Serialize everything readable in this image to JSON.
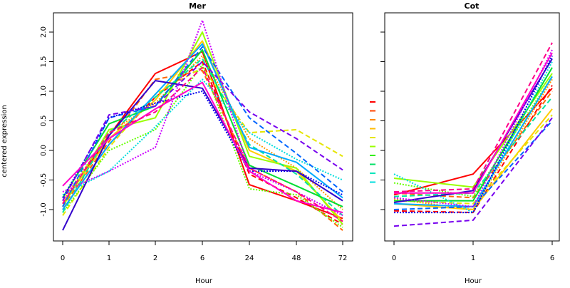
{
  "ylabel": "centered expression",
  "chart_data": [
    {
      "type": "line",
      "title": "Mer",
      "xlabel": "Hour",
      "categories": [
        "0",
        "1",
        "2",
        "6",
        "24",
        "48",
        "72"
      ],
      "ylim": [
        -1.5,
        2.25
      ],
      "yticks": [
        "-1.0",
        "-0.5",
        "0.0",
        "0.5",
        "1.0",
        "1.5",
        "2.0"
      ],
      "grid": false,
      "series": [
        {
          "color": "#ff0000",
          "dash": "solid",
          "values": [
            -0.9,
            0.25,
            1.3,
            1.67,
            -0.58,
            -0.85,
            -1.15
          ]
        },
        {
          "color": "#ff0000",
          "dash": "dashed",
          "values": [
            -1.0,
            0.1,
            0.9,
            1.5,
            -0.4,
            -0.8,
            -1.25
          ]
        },
        {
          "color": "#ff6600",
          "dash": "dashed",
          "values": [
            -0.95,
            0.15,
            1.2,
            1.35,
            -0.3,
            -0.7,
            -1.35
          ]
        },
        {
          "color": "#ff9900",
          "dash": "dotted",
          "values": [
            -0.85,
            0.3,
            0.8,
            1.6,
            0.2,
            -0.3,
            -1.0
          ]
        },
        {
          "color": "#ffcc00",
          "dash": "solid",
          "values": [
            -0.9,
            0.2,
            0.85,
            1.85,
            0.0,
            -0.35,
            -1.2
          ]
        },
        {
          "color": "#e5e500",
          "dash": "dashed",
          "values": [
            -1.1,
            0.05,
            0.95,
            1.4,
            0.3,
            0.35,
            -0.1
          ]
        },
        {
          "color": "#99ff00",
          "dash": "solid",
          "values": [
            -0.95,
            0.35,
            0.55,
            2.0,
            -0.1,
            -0.3,
            -1.25
          ]
        },
        {
          "color": "#66ff00",
          "dash": "dotted",
          "values": [
            -1.05,
            0.0,
            0.35,
            1.45,
            -0.65,
            -0.75,
            -1.3
          ]
        },
        {
          "color": "#00dd33",
          "dash": "solid",
          "values": [
            -0.8,
            0.45,
            0.75,
            1.7,
            -0.25,
            -0.6,
            -0.95
          ]
        },
        {
          "color": "#00e5a0",
          "dash": "dashed",
          "values": [
            -1.05,
            0.3,
            0.9,
            1.55,
            0.1,
            -0.4,
            -1.1
          ]
        },
        {
          "color": "#00dddd",
          "dash": "dotted",
          "values": [
            -0.75,
            -0.35,
            0.4,
            1.2,
            0.3,
            -0.15,
            -0.5
          ]
        },
        {
          "color": "#00aaff",
          "dash": "solid",
          "values": [
            -1.0,
            0.1,
            0.95,
            1.8,
            0.05,
            -0.2,
            -0.8
          ]
        },
        {
          "color": "#0066ff",
          "dash": "dashed",
          "values": [
            -0.95,
            0.55,
            0.75,
            1.75,
            0.55,
            -0.05,
            -0.7
          ]
        },
        {
          "color": "#0000ee",
          "dash": "dotted",
          "values": [
            -0.8,
            0.55,
            0.8,
            1.0,
            -0.35,
            -0.35,
            -0.75
          ]
        },
        {
          "color": "#3300cc",
          "dash": "solid",
          "values": [
            -1.35,
            0.25,
            1.18,
            1.05,
            -0.3,
            -0.35,
            -0.85
          ]
        },
        {
          "color": "#7700ee",
          "dash": "dashed",
          "values": [
            -0.85,
            0.6,
            0.75,
            1.5,
            0.65,
            0.2,
            -0.33
          ]
        },
        {
          "color": "#cc00ff",
          "dash": "dotted",
          "values": [
            -0.7,
            -0.35,
            0.05,
            2.2,
            -0.35,
            -0.7,
            -1.1
          ]
        },
        {
          "color": "#ff00cc",
          "dash": "solid",
          "values": [
            -0.6,
            0.2,
            0.7,
            1.15,
            -0.35,
            -0.85,
            -1.05
          ]
        },
        {
          "color": "#ff0088",
          "dash": "dashed",
          "values": [
            -0.9,
            0.3,
            0.65,
            1.4,
            -0.3,
            -0.7,
            -1.2
          ]
        }
      ]
    },
    {
      "type": "line",
      "title": "Cot",
      "xlabel": "Hour",
      "categories": [
        "0",
        "1",
        "6"
      ],
      "ylim": [
        -1.5,
        2.25
      ],
      "grid": false,
      "series": [
        {
          "color": "#ff0000",
          "dash": "solid",
          "values": [
            -0.75,
            -0.4,
            1.05
          ]
        },
        {
          "color": "#ff0000",
          "dash": "dashed",
          "values": [
            -1.02,
            -1.05,
            1.1
          ]
        },
        {
          "color": "#ff6600",
          "dash": "dashed",
          "values": [
            -0.72,
            -0.8,
            1.0
          ]
        },
        {
          "color": "#ff9900",
          "dash": "dotted",
          "values": [
            -0.82,
            -1.0,
            1.2
          ]
        },
        {
          "color": "#ffcc00",
          "dash": "solid",
          "values": [
            -0.9,
            -1.0,
            0.7
          ]
        },
        {
          "color": "#e5e500",
          "dash": "dashed",
          "values": [
            -0.85,
            -0.9,
            0.6
          ]
        },
        {
          "color": "#99ff00",
          "dash": "solid",
          "values": [
            -0.47,
            -0.62,
            1.3
          ]
        },
        {
          "color": "#66ff00",
          "dash": "dotted",
          "values": [
            -0.55,
            -0.78,
            1.25
          ]
        },
        {
          "color": "#00dd33",
          "dash": "solid",
          "values": [
            -0.85,
            -0.85,
            1.4
          ]
        },
        {
          "color": "#00e5a0",
          "dash": "dashed",
          "values": [
            -0.78,
            -0.72,
            0.9
          ]
        },
        {
          "color": "#00dddd",
          "dash": "dotted",
          "values": [
            -0.4,
            -1.05,
            1.5
          ]
        },
        {
          "color": "#00aaff",
          "dash": "solid",
          "values": [
            -0.9,
            -0.95,
            1.25
          ]
        },
        {
          "color": "#0066ff",
          "dash": "dashed",
          "values": [
            -1.0,
            -0.95,
            0.5
          ]
        },
        {
          "color": "#0000ee",
          "dash": "dotted",
          "values": [
            -1.05,
            -1.05,
            1.6
          ]
        },
        {
          "color": "#3300cc",
          "dash": "solid",
          "values": [
            -0.88,
            -0.68,
            1.55
          ]
        },
        {
          "color": "#7700ee",
          "dash": "dashed",
          "values": [
            -1.28,
            -1.18,
            0.55
          ]
        },
        {
          "color": "#cc00ff",
          "dash": "dotted",
          "values": [
            -0.8,
            -0.95,
            1.7
          ]
        },
        {
          "color": "#ff00cc",
          "dash": "solid",
          "values": [
            -0.72,
            -0.72,
            1.65
          ]
        },
        {
          "color": "#ff0088",
          "dash": "dashed",
          "values": [
            -0.7,
            -0.65,
            1.82
          ]
        }
      ]
    }
  ],
  "legend": {
    "placement": "between-panels",
    "entries": [
      {
        "color": "#ff0000"
      },
      {
        "color": "#ff4400"
      },
      {
        "color": "#ff8800"
      },
      {
        "color": "#ffbb00"
      },
      {
        "color": "#e5e500"
      },
      {
        "color": "#99ff00"
      },
      {
        "color": "#33ee00"
      },
      {
        "color": "#00e066"
      },
      {
        "color": "#00e5bb"
      },
      {
        "color": "#00dddd"
      }
    ]
  }
}
